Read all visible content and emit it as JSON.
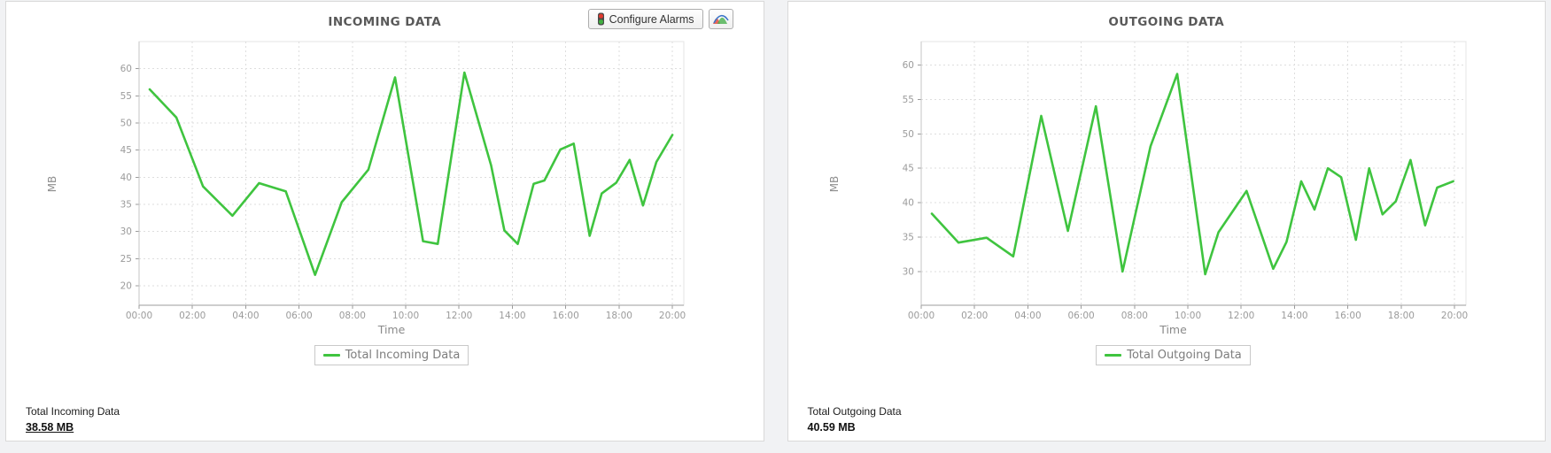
{
  "toolbar": {
    "configure_alarms_label": "Configure Alarms",
    "alarm_icon": "traffic-light-icon",
    "chart_type_icon": "area-chart-icon"
  },
  "colors": {
    "line_green": "#3fc43f",
    "title_gray": "#595959",
    "axis_gray": "#9b9b9b"
  },
  "chart_data": [
    {
      "type": "line",
      "title": "INCOMING DATA",
      "xlabel": "Time",
      "ylabel": "MB",
      "legend": "Total Incoming Data",
      "legend_position": "bottom",
      "grid": true,
      "line_color": "#3fc43f",
      "xticks": [
        "00:00",
        "02:00",
        "04:00",
        "06:00",
        "08:00",
        "10:00",
        "12:00",
        "14:00",
        "16:00",
        "18:00",
        "20:00"
      ],
      "xtick_hours": [
        0,
        2,
        4,
        6,
        8,
        10,
        12,
        14,
        16,
        18,
        20
      ],
      "yticks": [
        20,
        25,
        30,
        35,
        40,
        45,
        50,
        55,
        60
      ],
      "ylim": [
        16.4,
        65.0
      ],
      "xlim": [
        0,
        20.43
      ],
      "series": [
        {
          "name": "Total Incoming Data",
          "points": [
            [
              0.4,
              56.2
            ],
            [
              1.4,
              51.0
            ],
            [
              2.4,
              38.3
            ],
            [
              3.5,
              32.9
            ],
            [
              4.5,
              38.9
            ],
            [
              5.5,
              37.4
            ],
            [
              6.6,
              22.0
            ],
            [
              7.6,
              35.4
            ],
            [
              8.6,
              41.4
            ],
            [
              9.6,
              58.4
            ],
            [
              10.65,
              28.2
            ],
            [
              11.2,
              27.7
            ],
            [
              12.2,
              59.3
            ],
            [
              13.2,
              42.2
            ],
            [
              13.7,
              30.2
            ],
            [
              14.2,
              27.7
            ],
            [
              14.8,
              38.8
            ],
            [
              15.2,
              39.4
            ],
            [
              15.8,
              45.1
            ],
            [
              16.3,
              46.2
            ],
            [
              16.9,
              29.2
            ],
            [
              17.35,
              37.0
            ],
            [
              17.9,
              39.0
            ],
            [
              18.4,
              43.2
            ],
            [
              18.9,
              34.8
            ],
            [
              19.4,
              42.8
            ],
            [
              20.0,
              47.8
            ]
          ]
        }
      ],
      "summary": {
        "label": "Total Incoming Data",
        "value": "38.58 MB"
      }
    },
    {
      "type": "line",
      "title": "OUTGOING DATA",
      "xlabel": "Time",
      "ylabel": "MB",
      "legend": "Total Outgoing Data",
      "legend_position": "bottom",
      "grid": true,
      "line_color": "#3fc43f",
      "xticks": [
        "00:00",
        "02:00",
        "04:00",
        "06:00",
        "08:00",
        "10:00",
        "12:00",
        "14:00",
        "16:00",
        "18:00",
        "20:00"
      ],
      "xtick_hours": [
        0,
        2,
        4,
        6,
        8,
        10,
        12,
        14,
        16,
        18,
        20
      ],
      "yticks": [
        30,
        35,
        40,
        45,
        50,
        55,
        60
      ],
      "ylim": [
        25.1,
        63.4
      ],
      "xlim": [
        0,
        20.43
      ],
      "series": [
        {
          "name": "Total Outgoing Data",
          "points": [
            [
              0.4,
              38.4
            ],
            [
              1.4,
              34.2
            ],
            [
              2.45,
              34.9
            ],
            [
              3.45,
              32.2
            ],
            [
              4.5,
              52.6
            ],
            [
              5.5,
              35.9
            ],
            [
              6.55,
              54.0
            ],
            [
              7.55,
              30.0
            ],
            [
              8.6,
              48.2
            ],
            [
              9.6,
              58.7
            ],
            [
              10.65,
              29.6
            ],
            [
              11.15,
              35.7
            ],
            [
              12.2,
              41.7
            ],
            [
              13.2,
              30.4
            ],
            [
              13.7,
              34.3
            ],
            [
              14.25,
              43.1
            ],
            [
              14.75,
              39.0
            ],
            [
              15.25,
              45.0
            ],
            [
              15.75,
              43.7
            ],
            [
              16.3,
              34.6
            ],
            [
              16.8,
              45.0
            ],
            [
              17.3,
              38.3
            ],
            [
              17.8,
              40.2
            ],
            [
              18.35,
              46.2
            ],
            [
              18.9,
              36.7
            ],
            [
              19.35,
              42.2
            ],
            [
              19.95,
              43.1
            ]
          ]
        }
      ],
      "summary": {
        "label": "Total Outgoing Data",
        "value": "40.59 MB"
      }
    }
  ]
}
